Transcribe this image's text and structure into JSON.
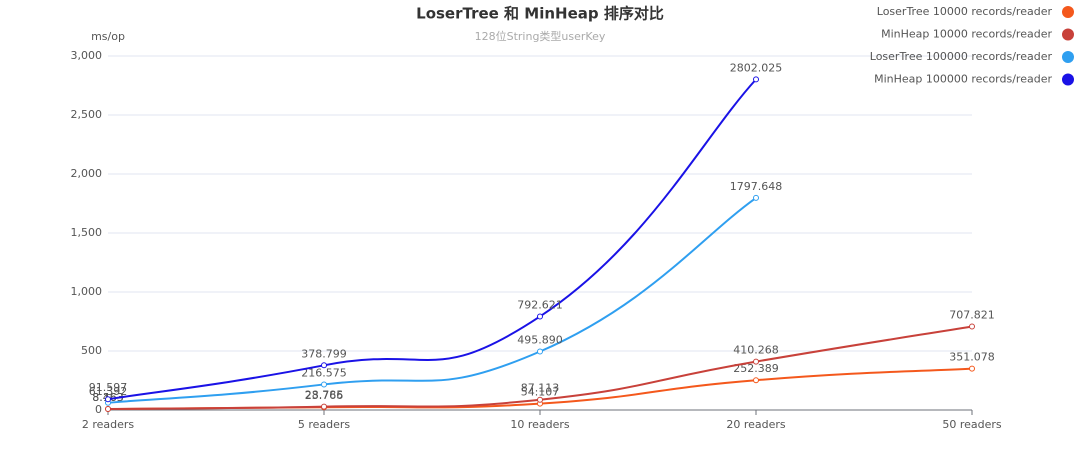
{
  "chart_data": {
    "type": "line",
    "title": "LoserTree 和 MinHeap 排序对比",
    "subtitle": "128位String类型userKey",
    "y_label": "ms/op",
    "categories": [
      "2 readers",
      "5 readers",
      "10 readers",
      "20 readers",
      "50 readers"
    ],
    "ylim": [
      0,
      3000
    ],
    "yticks": [
      0,
      500,
      {
        "value": 1000,
        "label": "1,000"
      },
      {
        "value": 1500,
        "label": "1,500"
      },
      {
        "value": 2000,
        "label": "2,000"
      },
      {
        "value": 2500,
        "label": "2,500"
      },
      {
        "value": 3000,
        "label": "3,000"
      }
    ],
    "grid": true,
    "legend": "top-right",
    "series": [
      {
        "name": "LoserTree 10000 records/reader",
        "color": "#f4581c",
        "values": [
          8.163,
          23.766,
          54.107,
          252.389,
          351.078
        ],
        "value_labels": [
          "8.163",
          "23.766",
          "54.107",
          "252.389",
          "351.078"
        ]
      },
      {
        "name": "MinHeap 10000 records/reader",
        "color": "#c8413a",
        "values": [
          8.463,
          28.785,
          87.113,
          410.268,
          707.821
        ],
        "value_labels": [
          "8.463",
          "28.785",
          "87.113",
          "410.268",
          "707.821"
        ]
      },
      {
        "name": "LoserTree 100000 records/reader",
        "color": "#2f9ff0",
        "values": [
          61.392,
          216.575,
          495.89,
          1797.648,
          null
        ],
        "value_labels": [
          "61.392",
          "216.575",
          "495.890",
          "1797.648",
          null
        ]
      },
      {
        "name": "MinHeap 100000 records/reader",
        "color": "#1a12e6",
        "values": [
          91.597,
          378.799,
          792.621,
          2802.025,
          null
        ],
        "value_labels": [
          "91.597",
          "378.799",
          "792.621",
          "2802.025",
          null
        ]
      }
    ]
  }
}
